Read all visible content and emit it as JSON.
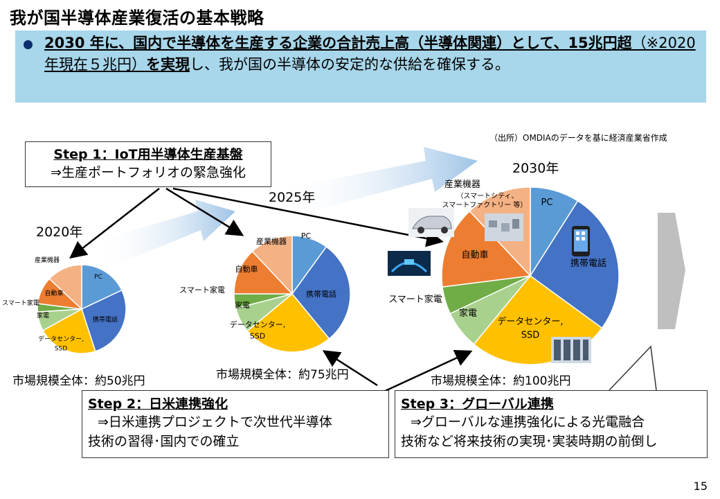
{
  "title": "我が国半導体産業復活の基本戦略",
  "banner": {
    "part1": "2030 年に、国内で半導体を生産する企業の合計売上高（半導体関連）として、15兆円超",
    "part2": "（※2020年現在５兆円）",
    "part3": "を実現",
    "part4": "し、我が国の半導体の安定的な供給を確保する。"
  },
  "source": "（出所）OMDIAのデータを基に経済産業省作成",
  "colors": {
    "pc": "#5b9bd5",
    "mobile": "#4472c4",
    "datacenter": "#ffc000",
    "home": "#a9d18e",
    "smart_home": "#70ad47",
    "auto": "#ed7d31",
    "industrial": "#f4b183",
    "arrow": "#9dc3e6",
    "banner": "#a8d6ea"
  },
  "chart_data": [
    {
      "type": "pie",
      "title": "2020年",
      "note": "市場規模全体：約50兆円",
      "slices": [
        {
          "label": "PC",
          "value": 18
        },
        {
          "label": "携帯電話",
          "value": 27
        },
        {
          "label": "データセンター,SSD",
          "value": 22
        },
        {
          "label": "家電",
          "value": 7
        },
        {
          "label": "スマート家電",
          "value": 3
        },
        {
          "label": "自動車",
          "value": 10
        },
        {
          "label": "産業機器",
          "value": 13
        }
      ]
    },
    {
      "type": "pie",
      "title": "2025年",
      "note": "市場規模全体：約75兆円",
      "slices": [
        {
          "label": "PC",
          "value": 10
        },
        {
          "label": "携帯電話",
          "value": 29
        },
        {
          "label": "データセンター,SSD",
          "value": 25
        },
        {
          "label": "家電",
          "value": 7
        },
        {
          "label": "スマート家電",
          "value": 4
        },
        {
          "label": "自動車",
          "value": 13
        },
        {
          "label": "産業機器",
          "value": 12
        }
      ]
    },
    {
      "type": "pie",
      "title": "2030年",
      "note": "市場規模全体：約100兆円",
      "slices": [
        {
          "label": "PC",
          "value": 9
        },
        {
          "label": "携帯電話",
          "value": 26
        },
        {
          "label": "データセンター,SSD",
          "value": 26
        },
        {
          "label": "家電",
          "value": 7
        },
        {
          "label": "スマート家電",
          "value": 5
        },
        {
          "label": "自動車",
          "value": 15
        },
        {
          "label": "産業機器",
          "value": 12
        }
      ]
    }
  ],
  "industrial_note": "（スマートシティ、スマートファクトリー 等）",
  "steps": [
    {
      "title": "Step 1：IoT用半導体生産基盤",
      "body": "⇒生産ポートフォリオの緊急強化"
    },
    {
      "title": "Step 2：日米連携強化",
      "body1": "⇒日米連携プロジェクトで次世代半導体",
      "body2": "技術の習得･国内での確立"
    },
    {
      "title": "Step 3：グローバル連携",
      "body1": "⇒グローバルな連携強化による光電融合",
      "body2": "技術など将来技術の実現･実装時期の前倒し"
    }
  ],
  "page_number": "15"
}
